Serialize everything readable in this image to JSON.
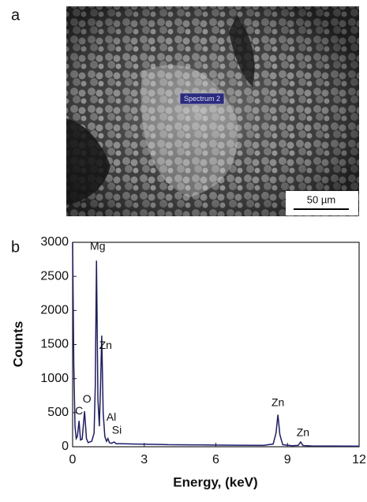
{
  "image_panel": {
    "panel_label": "a",
    "spectrum_label": "Spectrum 2",
    "scale_bar": "50 µm"
  },
  "chart_data": {
    "type": "line",
    "panel_label": "b",
    "x_label": "Energy, (keV)",
    "y_label": "Counts",
    "x": [
      0,
      0.05,
      0.1,
      0.15,
      0.2,
      0.27,
      0.33,
      0.4,
      0.5,
      0.58,
      0.65,
      0.8,
      0.9,
      0.95,
      1.0,
      1.06,
      1.12,
      1.17,
      1.22,
      1.28,
      1.35,
      1.42,
      1.48,
      1.54,
      1.62,
      1.74,
      1.82,
      2.0,
      2.5,
      3,
      3.5,
      4,
      5,
      6,
      7,
      8,
      8.4,
      8.52,
      8.6,
      8.68,
      8.8,
      9.2,
      9.45,
      9.55,
      9.65,
      10,
      11,
      12
    ],
    "values": [
      3000,
      1200,
      300,
      120,
      150,
      380,
      100,
      110,
      520,
      120,
      60,
      80,
      200,
      900,
      2730,
      700,
      300,
      900,
      1630,
      500,
      150,
      80,
      120,
      60,
      50,
      70,
      45,
      45,
      40,
      38,
      35,
      30,
      28,
      25,
      22,
      20,
      40,
      200,
      470,
      180,
      30,
      15,
      20,
      70,
      18,
      12,
      10,
      8
    ],
    "color": "#1c1c6b",
    "xlim": [
      0,
      12
    ],
    "xticks": [
      0,
      3,
      6,
      9,
      12
    ],
    "ylim": [
      0,
      3000
    ],
    "yticks": [
      0,
      500,
      1000,
      1500,
      2000,
      2500,
      3000
    ],
    "annotations": [
      {
        "text": "C",
        "x": 0.27,
        "y": 520
      },
      {
        "text": "O",
        "x": 0.6,
        "y": 690
      },
      {
        "text": "Mg",
        "x": 1.05,
        "y": 2930
      },
      {
        "text": "Zn",
        "x": 1.38,
        "y": 1480
      },
      {
        "text": "Al",
        "x": 1.62,
        "y": 425
      },
      {
        "text": "Si",
        "x": 1.85,
        "y": 236
      },
      {
        "text": "Zn",
        "x": 8.6,
        "y": 640
      },
      {
        "text": "Zn",
        "x": 9.65,
        "y": 200
      }
    ]
  }
}
